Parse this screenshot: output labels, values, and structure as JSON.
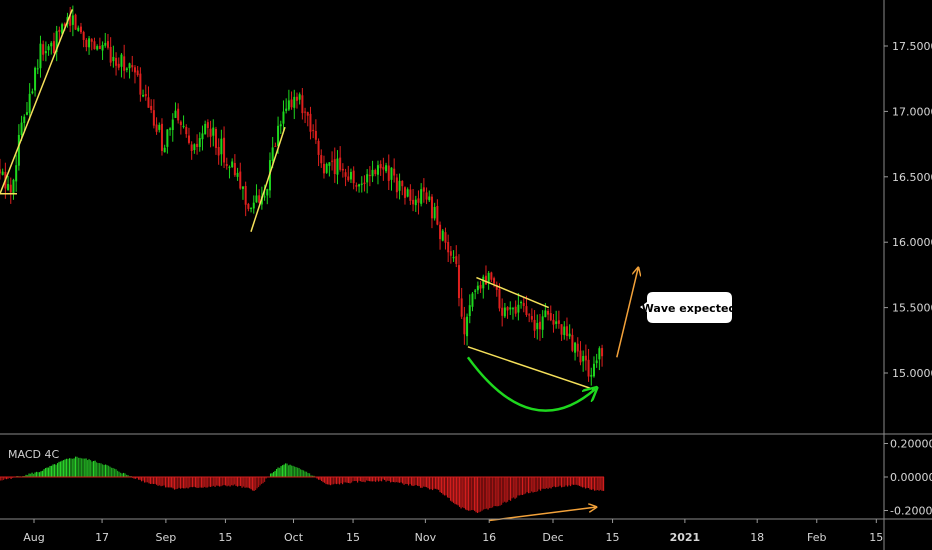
{
  "chart_data": {
    "type": "candlestick",
    "price_axis": {
      "ticks": [
        17.5,
        17.0,
        16.5,
        16.0,
        15.5,
        15.0
      ],
      "tick_labels": [
        "17.50000",
        "17.00000",
        "16.50000",
        "16.00000",
        "15.50000",
        "15.00000"
      ],
      "range": [
        14.58,
        17.86
      ]
    },
    "macd_axis": {
      "ticks": [
        0.2,
        0.0,
        -0.2
      ],
      "tick_labels": [
        "0.20000",
        "0.00000",
        "-0.20000"
      ],
      "range": [
        -0.29,
        0.29
      ]
    },
    "indicator_title": "MACD 4C",
    "date_axis": {
      "labels": [
        "Aug",
        "17",
        "Sep",
        "15",
        "Oct",
        "15",
        "Nov",
        "16",
        "Dec",
        "15",
        "2021",
        "18",
        "Feb",
        "15"
      ],
      "label_dates": [
        "2020-08-01",
        "2020-08-17",
        "2020-09-01",
        "2020-09-15",
        "2020-10-01",
        "2020-10-15",
        "2020-11-01",
        "2020-11-16",
        "2020-12-01",
        "2020-12-15",
        "2021-01-01",
        "2021-01-18",
        "2021-02-01",
        "2021-02-15"
      ],
      "year_labels": [
        "2021"
      ]
    },
    "price_path": [
      [
        "2020-07-24",
        16.55
      ],
      [
        "2020-07-27",
        16.38
      ],
      [
        "2020-07-30",
        16.95
      ],
      [
        "2020-08-03",
        17.45
      ],
      [
        "2020-08-06",
        17.48
      ],
      [
        "2020-08-10",
        17.74
      ],
      [
        "2020-08-13",
        17.58
      ],
      [
        "2020-08-17",
        17.5
      ],
      [
        "2020-08-21",
        17.42
      ],
      [
        "2020-08-25",
        17.3
      ],
      [
        "2020-08-28",
        17.05
      ],
      [
        "2020-09-01",
        16.75
      ],
      [
        "2020-09-04",
        16.95
      ],
      [
        "2020-09-08",
        16.65
      ],
      [
        "2020-09-11",
        16.88
      ],
      [
        "2020-09-15",
        16.7
      ],
      [
        "2020-09-18",
        16.5
      ],
      [
        "2020-09-22",
        16.25
      ],
      [
        "2020-09-25",
        16.4
      ],
      [
        "2020-09-28",
        16.85
      ],
      [
        "2020-10-02",
        17.15
      ],
      [
        "2020-10-06",
        16.8
      ],
      [
        "2020-10-09",
        16.55
      ],
      [
        "2020-10-13",
        16.6
      ],
      [
        "2020-10-16",
        16.45
      ],
      [
        "2020-10-20",
        16.5
      ],
      [
        "2020-10-23",
        16.6
      ],
      [
        "2020-10-27",
        16.4
      ],
      [
        "2020-10-30",
        16.3
      ],
      [
        "2020-11-02",
        16.35
      ],
      [
        "2020-11-05",
        16.1
      ],
      [
        "2020-11-09",
        15.75
      ],
      [
        "2020-11-11",
        15.3
      ],
      [
        "2020-11-13",
        15.6
      ],
      [
        "2020-11-17",
        15.7
      ],
      [
        "2020-11-20",
        15.45
      ],
      [
        "2020-11-24",
        15.55
      ],
      [
        "2020-11-27",
        15.35
      ],
      [
        "2020-12-01",
        15.45
      ],
      [
        "2020-12-04",
        15.3
      ],
      [
        "2020-12-08",
        15.15
      ],
      [
        "2020-12-10",
        15.0
      ],
      [
        "2020-12-13",
        15.15
      ]
    ],
    "macd_path": [
      [
        "2020-07-24",
        -0.02
      ],
      [
        "2020-08-02",
        0.03
      ],
      [
        "2020-08-08",
        0.1
      ],
      [
        "2020-08-11",
        0.12
      ],
      [
        "2020-08-17",
        0.08
      ],
      [
        "2020-08-22",
        0.02
      ],
      [
        "2020-08-27",
        -0.03
      ],
      [
        "2020-09-03",
        -0.07
      ],
      [
        "2020-09-10",
        -0.06
      ],
      [
        "2020-09-17",
        -0.05
      ],
      [
        "2020-09-22",
        -0.08
      ],
      [
        "2020-09-26",
        0.03
      ],
      [
        "2020-09-29",
        0.08
      ],
      [
        "2020-10-04",
        0.03
      ],
      [
        "2020-10-09",
        -0.05
      ],
      [
        "2020-10-15",
        -0.03
      ],
      [
        "2020-10-22",
        -0.02
      ],
      [
        "2020-10-29",
        -0.05
      ],
      [
        "2020-11-04",
        -0.08
      ],
      [
        "2020-11-09",
        -0.18
      ],
      [
        "2020-11-13",
        -0.21
      ],
      [
        "2020-11-18",
        -0.17
      ],
      [
        "2020-11-24",
        -0.1
      ],
      [
        "2020-12-01",
        -0.06
      ],
      [
        "2020-12-06",
        -0.05
      ],
      [
        "2020-12-11",
        -0.08
      ],
      [
        "2020-12-13",
        -0.08
      ]
    ],
    "annotations": {
      "callout": "Wave expected",
      "trend_lines": [
        {
          "from": [
            "2020-07-24",
            16.37
          ],
          "to": [
            "2020-08-10",
            17.78
          ],
          "color": "#f5e05a"
        },
        {
          "from": [
            "2020-09-21",
            16.08
          ],
          "to": [
            "2020-09-29",
            16.88
          ],
          "color": "#f5e05a"
        },
        {
          "from": [
            "2020-11-13",
            15.73
          ],
          "to": [
            "2020-11-30",
            15.5
          ],
          "color": "#f5e05a"
        },
        {
          "from": [
            "2020-11-11",
            15.2
          ],
          "to": [
            "2020-12-11",
            14.87
          ],
          "color": "#f5e05a"
        },
        {
          "from": [
            "2020-12-16",
            15.12
          ],
          "to": [
            "2020-12-21",
            15.8
          ],
          "color": "#f3a23a",
          "arrow": true
        },
        {
          "from": [
            "2020-11-16",
            -0.26
          ],
          "to": [
            "2020-12-11",
            -0.18
          ],
          "color": "#f3a23a",
          "arrow": true,
          "pane": "macd"
        }
      ],
      "arc_color": "#1ed81e"
    },
    "colors": {
      "up": "#1ed81e",
      "down": "#e0201e",
      "macd_up": "#2ad12a",
      "macd_down": "#d21d1d",
      "axis_line": "#b5b5b5",
      "background": "#000000"
    }
  }
}
